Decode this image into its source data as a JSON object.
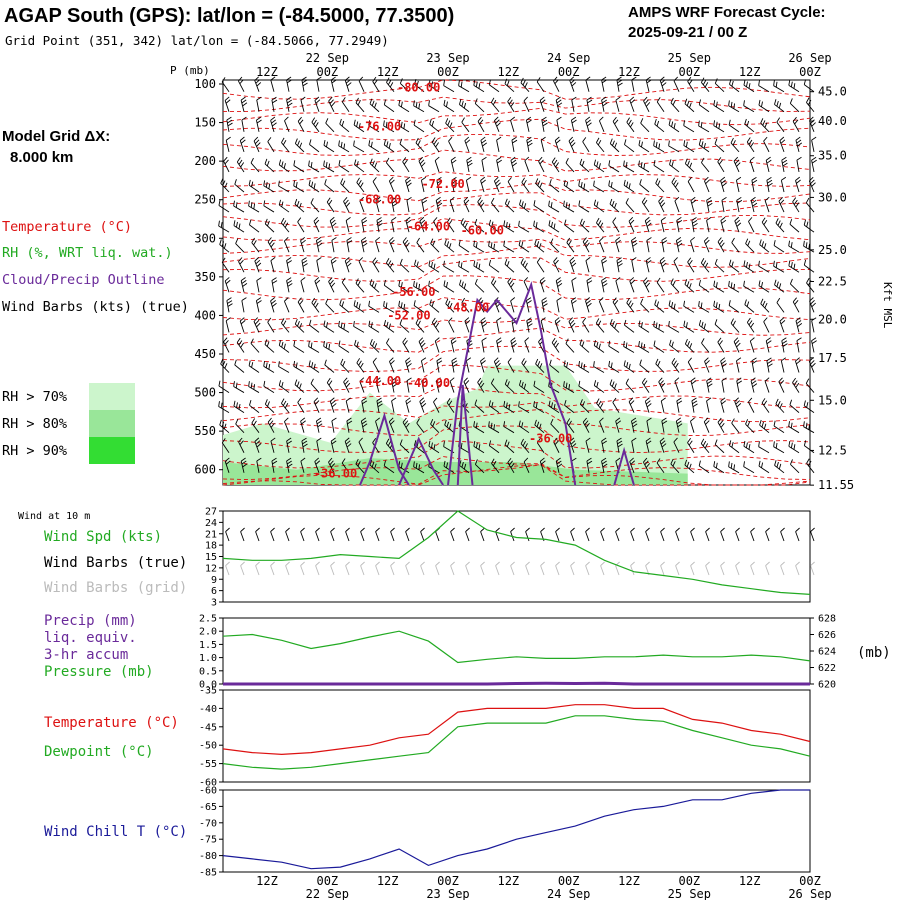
{
  "header": {
    "title": "AGAP South (GPS):  lat/lon = (-84.5000, 77.3500)",
    "grid_point": "Grid Point (351, 342) lat/lon = (-84.5066, 77.2949)",
    "cycle_label": "AMPS WRF Forecast Cycle:",
    "cycle_value": "2025-09-21 / 00  Z"
  },
  "time_axis": {
    "labels": [
      "12Z",
      "00Z",
      "12Z",
      "00Z",
      "12Z",
      "00Z",
      "12Z",
      "00Z",
      "12Z",
      "00Z"
    ],
    "dates": [
      {
        "label": "22 Sep",
        "index": 1
      },
      {
        "label": "23 Sep",
        "index": 3
      },
      {
        "label": "24 Sep",
        "index": 5
      },
      {
        "label": "25 Sep",
        "index": 7
      },
      {
        "label": "26 Sep",
        "index": 9
      }
    ]
  },
  "side_panel": {
    "model_grid_label": "Model Grid ΔX:",
    "model_grid_value": "8.000 km",
    "legend": [
      {
        "label": "Temperature (°C)",
        "color": "#dd1111"
      },
      {
        "label": "RH (%, WRT liq. wat.)",
        "color": "#22aa22"
      },
      {
        "label": "Cloud/Precip Outline",
        "color": "#6a2a9a"
      },
      {
        "label": "Wind Barbs (kts) (true)",
        "color": "#000000"
      }
    ],
    "rh_legend": [
      {
        "label": "RH > 70%",
        "color": "#ccf5cc"
      },
      {
        "label": "RH > 80%",
        "color": "#99e699"
      },
      {
        "label": "RH > 90%",
        "color": "#33dd33"
      }
    ]
  },
  "chart_data": [
    {
      "type": "contour",
      "panel": "upper-air cross section",
      "title": "",
      "ylabel_left": "P (mb)",
      "ylabel_right": "Kft MSL",
      "y_ticks_left": [
        100,
        150,
        200,
        250,
        300,
        350,
        400,
        450,
        500,
        550,
        600
      ],
      "y_ticks_right": [
        "45.0",
        "40.0",
        "35.0",
        "30.0",
        "25.0",
        "22.5",
        "20.0",
        "17.5",
        "15.0",
        "12.5",
        "11.55"
      ],
      "y_ticks_right_pressure": [
        110,
        148,
        193,
        247,
        315,
        356,
        405,
        455,
        510,
        575,
        620
      ],
      "temperature_labels": [
        {
          "text": "-80.00",
          "t": 40,
          "p": 110
        },
        {
          "text": "-76.00",
          "t": 32,
          "p": 160
        },
        {
          "text": "-72.00",
          "t": 45,
          "p": 235
        },
        {
          "text": "-68.00",
          "t": 32,
          "p": 255
        },
        {
          "text": "-64.00",
          "t": 42,
          "p": 290
        },
        {
          "text": "-60.00",
          "t": 53,
          "p": 295
        },
        {
          "text": "-56.00",
          "t": 39,
          "p": 375
        },
        {
          "text": "-52.00",
          "t": 38,
          "p": 405
        },
        {
          "text": "-48.00",
          "t": 50,
          "p": 395
        },
        {
          "text": "-44.00",
          "t": 32,
          "p": 490
        },
        {
          "text": "-40.00",
          "t": 42,
          "p": 493
        },
        {
          "text": "-36.00",
          "t": 67,
          "p": 565
        },
        {
          "text": "-36.00",
          "t": 23,
          "p": 610
        }
      ],
      "rh_regions": [
        {
          "level": "RH > 70%",
          "polygon": [
            [
              0,
              625
            ],
            [
              0,
              555
            ],
            [
              8,
              540
            ],
            [
              22,
              565
            ],
            [
              30,
              500
            ],
            [
              38,
              540
            ],
            [
              46,
              510
            ],
            [
              52,
              495
            ],
            [
              54,
              465
            ],
            [
              70,
              465
            ],
            [
              76,
              520
            ],
            [
              95,
              540
            ],
            [
              95,
              625
            ]
          ]
        },
        {
          "level": "RH > 80%",
          "polygon": [
            [
              0,
              625
            ],
            [
              0,
              590
            ],
            [
              15,
              600
            ],
            [
              30,
              585
            ],
            [
              45,
              590
            ],
            [
              60,
              590
            ],
            [
              72,
              600
            ],
            [
              95,
              605
            ],
            [
              95,
              625
            ]
          ]
        }
      ],
      "cloud_outline": [
        [
          [
            28,
            625
          ],
          [
            30,
            590
          ],
          [
            33,
            530
          ],
          [
            36,
            600
          ],
          [
            38,
            625
          ]
        ],
        [
          [
            36,
            625
          ],
          [
            40,
            560
          ],
          [
            43,
            600
          ],
          [
            45,
            625
          ]
        ],
        [
          [
            46,
            625
          ],
          [
            48,
            510
          ],
          [
            52,
            380
          ],
          [
            54,
            395
          ],
          [
            56,
            380
          ],
          [
            60,
            410
          ],
          [
            63,
            360
          ],
          [
            65,
            420
          ],
          [
            67,
            490
          ],
          [
            70,
            540
          ],
          [
            72,
            625
          ]
        ],
        [
          [
            48,
            625
          ],
          [
            49,
            490
          ],
          [
            51,
            625
          ]
        ],
        [
          [
            80,
            625
          ],
          [
            82,
            575
          ],
          [
            84,
            625
          ]
        ]
      ]
    },
    {
      "type": "line",
      "panel": "10 m wind",
      "title": "Wind at 10 m",
      "x_hours": [
        0,
        6,
        12,
        18,
        24,
        30,
        36,
        42,
        48,
        54,
        60,
        66,
        72,
        78,
        84,
        90,
        96,
        102,
        108,
        114,
        120
      ],
      "series": [
        {
          "name": "Wind Spd (kts)",
          "color": "#22aa22",
          "values": [
            14.5,
            14,
            14,
            14.5,
            15.5,
            15,
            14.5,
            20,
            27,
            22,
            20,
            19.5,
            18,
            14,
            11,
            10,
            9,
            7.5,
            6.5,
            5.5,
            5
          ]
        }
      ],
      "ylim": [
        3,
        27
      ],
      "y_ticks": [
        3,
        6,
        9,
        12,
        15,
        18,
        21,
        24,
        27
      ],
      "extra_legend": [
        {
          "label": "Wind Barbs (true)",
          "color": "#000000"
        },
        {
          "label": "Wind Barbs (grid)",
          "color": "#bbbbbb"
        }
      ]
    },
    {
      "type": "line",
      "panel": "precip & pressure",
      "x_hours": [
        0,
        6,
        12,
        18,
        24,
        30,
        36,
        42,
        48,
        54,
        60,
        66,
        72,
        78,
        84,
        90,
        96,
        102,
        108,
        114,
        120
      ],
      "series": [
        {
          "name": "Pressure (mb)",
          "color": "#22aa22",
          "axis": "right",
          "values": [
            625.8,
            626,
            625.3,
            624.3,
            624.9,
            625.7,
            626.4,
            625.2,
            622.6,
            623,
            623.3,
            623.1,
            623.1,
            623.3,
            623.3,
            623.5,
            623.3,
            623.3,
            623.5,
            623.3,
            622.8
          ]
        },
        {
          "name": "Precip (mm) liq. equiv. 3-hr accum",
          "color": "#6a2a9a",
          "axis": "left",
          "values": [
            0,
            0,
            0,
            0,
            0,
            0,
            0,
            0,
            0,
            0,
            0.02,
            0.03,
            0.02,
            0.03,
            0,
            0,
            0,
            0,
            0,
            0,
            0
          ]
        }
      ],
      "legend_lines": [
        "Precip (mm)",
        "liq. equiv.",
        "3-hr accum",
        "Pressure (mb)"
      ],
      "left_ticks": [
        "0.0",
        "0.5",
        "1.0",
        "1.5",
        "2.0",
        "2.5"
      ],
      "right_ticks": [
        "620",
        "622",
        "624",
        "626",
        "628"
      ],
      "right_unit": "(mb)",
      "ylim_left": [
        0,
        2.5
      ],
      "ylim_right": [
        620,
        628
      ]
    },
    {
      "type": "line",
      "panel": "temperature & dewpoint",
      "x_hours": [
        0,
        6,
        12,
        18,
        24,
        30,
        36,
        42,
        48,
        54,
        60,
        66,
        72,
        78,
        84,
        90,
        96,
        102,
        108,
        114,
        120
      ],
      "series": [
        {
          "name": "Temperature (°C)",
          "color": "#dd1111",
          "values": [
            -51,
            -52,
            -52.5,
            -52,
            -51,
            -50,
            -48,
            -47,
            -41,
            -40,
            -40,
            -40,
            -39,
            -39,
            -40,
            -40,
            -43,
            -44,
            -46,
            -47,
            -49
          ]
        },
        {
          "name": "Dewpoint (°C)",
          "color": "#22aa22",
          "values": [
            -55,
            -56,
            -56.5,
            -56,
            -55,
            -54,
            -53,
            -52,
            -45,
            -44,
            -44,
            -44,
            -42,
            -42,
            -43,
            -43.5,
            -46,
            -48,
            -50,
            -51,
            -53
          ]
        }
      ],
      "y_ticks": [
        -35,
        -40,
        -45,
        -50,
        -55,
        -60
      ],
      "ylim": [
        -60,
        -35
      ]
    },
    {
      "type": "line",
      "panel": "wind chill",
      "x_hours": [
        0,
        6,
        12,
        18,
        24,
        30,
        36,
        42,
        48,
        54,
        60,
        66,
        72,
        78,
        84,
        90,
        96,
        102,
        108,
        114,
        120
      ],
      "series": [
        {
          "name": "Wind Chill T (°C)",
          "color": "#1a1a99",
          "values": [
            -80,
            -81,
            -82,
            -84,
            -83.5,
            -81,
            -78,
            -83,
            -80,
            -78,
            -75,
            -73,
            -71,
            -68,
            -66,
            -65,
            -63,
            -63,
            -61,
            -60,
            -60
          ]
        }
      ],
      "y_ticks": [
        -60,
        -65,
        -70,
        -75,
        -80,
        -85
      ],
      "ylim": [
        -85,
        -60
      ]
    }
  ]
}
